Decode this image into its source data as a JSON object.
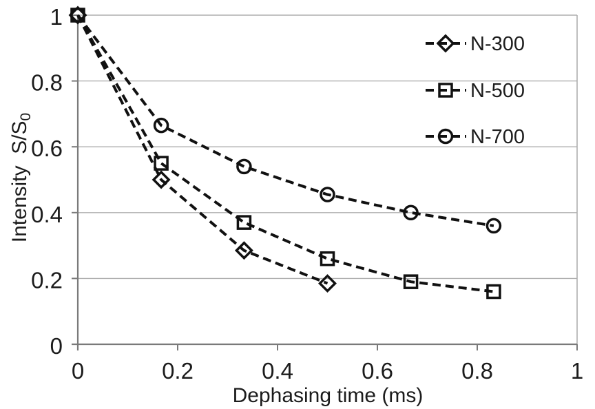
{
  "chart_data": {
    "type": "line",
    "title": "",
    "xlabel": "Dephasing time (ms)",
    "ylabel": "Intensity S/S0",
    "ylabel_main": "Intensity  S/S",
    "ylabel_sub": "0",
    "xlim": [
      0,
      1
    ],
    "ylim": [
      0,
      1
    ],
    "xticks": [
      0,
      0.2,
      0.4,
      0.6,
      0.8,
      1
    ],
    "yticks": [
      0,
      0.2,
      0.4,
      0.6,
      0.8,
      1
    ],
    "xtick_labels": [
      "0",
      "0.2",
      "0.4",
      "0.6",
      "0.8",
      "1"
    ],
    "ytick_labels": [
      "0",
      "0.2",
      "0.4",
      "0.6",
      "0.8",
      "1"
    ],
    "grid": "horizontal-only",
    "plot_right_border": true,
    "line_style": "dashed",
    "legend_position": "inside-top-right",
    "series": [
      {
        "name": "N-300",
        "marker": "diamond",
        "x": [
          0,
          0.167,
          0.333,
          0.5
        ],
        "y": [
          1,
          0.5,
          0.285,
          0.185
        ]
      },
      {
        "name": "N-500",
        "marker": "square",
        "x": [
          0,
          0.167,
          0.333,
          0.5,
          0.667,
          0.833
        ],
        "y": [
          1,
          0.55,
          0.37,
          0.26,
          0.19,
          0.16
        ]
      },
      {
        "name": "N-700",
        "marker": "circle",
        "x": [
          0,
          0.167,
          0.333,
          0.5,
          0.667,
          0.833
        ],
        "y": [
          1,
          0.665,
          0.54,
          0.455,
          0.4,
          0.36
        ]
      }
    ],
    "colors": {
      "series": "#111111",
      "axis": "#7a7a7a",
      "grid": "#aeaeae",
      "text": "#1c1c1c"
    }
  }
}
